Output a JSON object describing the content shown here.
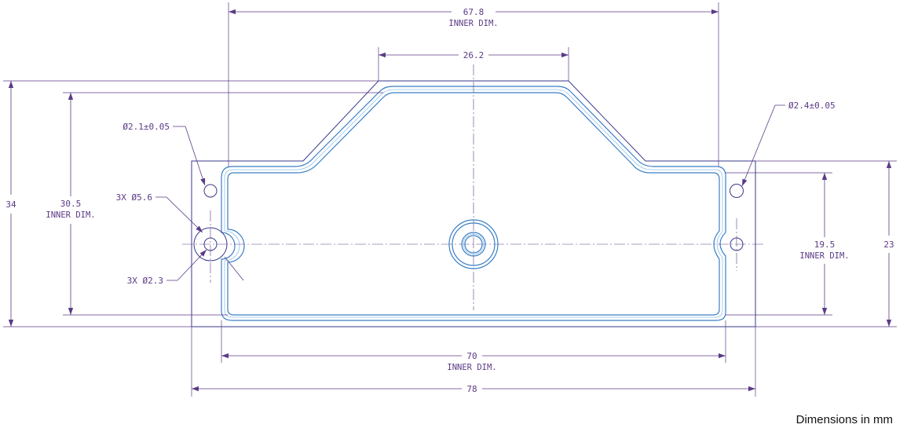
{
  "colors": {
    "dimension": "#5b3a86",
    "outline": "#3a3a8c",
    "gasket": "#3b7fc4",
    "gasket_light": "#8fc0ea"
  },
  "dimensions": {
    "inner_width_top": {
      "value": "67.8",
      "note": "INNER DIM."
    },
    "top_flat": {
      "value": "26.2"
    },
    "height_total": {
      "value": "34"
    },
    "inner_height": {
      "value": "30.5",
      "note": "INNER DIM."
    },
    "hole_left": {
      "value": "Ø2.1±0.05"
    },
    "hole_right": {
      "value": "Ø2.4±0.05"
    },
    "counterbore": {
      "value": "3X Ø5.6"
    },
    "through_hole": {
      "value": "3X Ø2.3"
    },
    "inner_right_height": {
      "value": "19.5",
      "note": "INNER DIM."
    },
    "right_height": {
      "value": "23"
    },
    "inner_width_bottom": {
      "value": "70",
      "note": "INNER DIM."
    },
    "total_width": {
      "value": "78"
    }
  },
  "footer": {
    "units_note": "Dimensions in mm"
  }
}
